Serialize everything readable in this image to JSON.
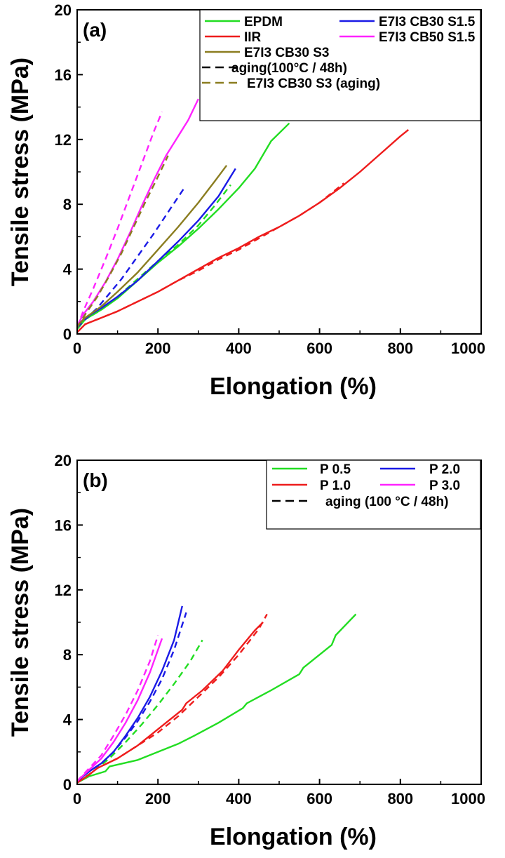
{
  "chart_data": [
    {
      "type": "line",
      "panel_label": "(a)",
      "xlabel": "Elongation (%)",
      "ylabel": "Tensile stress (MPa)",
      "xlim": [
        0,
        1000
      ],
      "ylim": [
        0,
        20
      ],
      "xticks": [
        "0",
        "200",
        "400",
        "600",
        "800",
        "1000"
      ],
      "yticks": [
        "0",
        "4",
        "8",
        "12",
        "16",
        "20"
      ],
      "legend_position": "top-right",
      "legend": [
        {
          "label": "EPDM",
          "color": "#22dd22",
          "dash": false
        },
        {
          "label": "E7I3 CB30 S1.5",
          "color": "#1a1ae6",
          "dash": false
        },
        {
          "label": "IIR",
          "color": "#ee1c1c",
          "dash": false
        },
        {
          "label": "E7I3 CB50 S1.5",
          "color": "#ff22ff",
          "dash": false
        },
        {
          "label": "E7I3 CB30 S3",
          "color": "#8b7d20",
          "dash": false
        },
        {
          "label": "aging(100°C / 48h)",
          "color": "#000000",
          "dash": true
        },
        {
          "label": "E7I3 CB30 S3 (aging)",
          "color": "#8b7d20",
          "dash": true
        }
      ],
      "series": [
        {
          "color": "#22dd22",
          "dash": false,
          "points": [
            [
              0,
              0.3
            ],
            [
              20,
              0.9
            ],
            [
              60,
              1.5
            ],
            [
              100,
              2.2
            ],
            [
              150,
              3.3
            ],
            [
              200,
              4.4
            ],
            [
              250,
              5.4
            ],
            [
              300,
              6.5
            ],
            [
              350,
              7.7
            ],
            [
              400,
              9.0
            ],
            [
              440,
              10.2
            ],
            [
              480,
              11.9
            ],
            [
              525,
              13.0
            ]
          ]
        },
        {
          "color": "#22dd22",
          "dash": true,
          "points": [
            [
              0,
              0.3
            ],
            [
              20,
              0.9
            ],
            [
              60,
              1.5
            ],
            [
              100,
              2.3
            ],
            [
              150,
              3.4
            ],
            [
              200,
              4.5
            ],
            [
              250,
              5.5
            ],
            [
              300,
              6.7
            ],
            [
              340,
              7.9
            ],
            [
              380,
              9.2
            ]
          ]
        },
        {
          "color": "#ee1c1c",
          "dash": false,
          "points": [
            [
              0,
              0.1
            ],
            [
              20,
              0.6
            ],
            [
              50,
              0.9
            ],
            [
              100,
              1.4
            ],
            [
              150,
              2.0
            ],
            [
              200,
              2.6
            ],
            [
              250,
              3.3
            ],
            [
              300,
              4.0
            ],
            [
              350,
              4.7
            ],
            [
              400,
              5.3
            ],
            [
              450,
              6.0
            ],
            [
              500,
              6.6
            ],
            [
              550,
              7.3
            ],
            [
              600,
              8.1
            ],
            [
              650,
              9.0
            ],
            [
              700,
              10.0
            ],
            [
              750,
              11.1
            ],
            [
              800,
              12.2
            ],
            [
              820,
              12.6
            ]
          ]
        },
        {
          "color": "#ee1c1c",
          "dash": true,
          "points": [
            [
              0,
              0.1
            ],
            [
              20,
              0.6
            ],
            [
              50,
              0.9
            ],
            [
              100,
              1.4
            ],
            [
              150,
              2.0
            ],
            [
              200,
              2.6
            ],
            [
              250,
              3.3
            ],
            [
              300,
              3.9
            ],
            [
              350,
              4.6
            ],
            [
              400,
              5.2
            ],
            [
              450,
              5.9
            ],
            [
              500,
              6.6
            ],
            [
              550,
              7.3
            ],
            [
              600,
              8.1
            ],
            [
              660,
              9.3
            ]
          ]
        },
        {
          "color": "#1a1ae6",
          "dash": false,
          "points": [
            [
              0,
              0.5
            ],
            [
              20,
              1.0
            ],
            [
              60,
              1.6
            ],
            [
              100,
              2.3
            ],
            [
              150,
              3.3
            ],
            [
              200,
              4.5
            ],
            [
              250,
              5.7
            ],
            [
              300,
              7.0
            ],
            [
              350,
              8.5
            ],
            [
              392,
              10.2
            ]
          ]
        },
        {
          "color": "#1a1ae6",
          "dash": true,
          "points": [
            [
              0,
              0.4
            ],
            [
              20,
              0.9
            ],
            [
              50,
              1.6
            ],
            [
              80,
              2.5
            ],
            [
              110,
              3.4
            ],
            [
              150,
              4.8
            ],
            [
              190,
              6.2
            ],
            [
              230,
              7.7
            ],
            [
              265,
              9.0
            ]
          ]
        },
        {
          "color": "#ff22ff",
          "dash": false,
          "points": [
            [
              0,
              0.5
            ],
            [
              15,
              1.2
            ],
            [
              40,
              2.0
            ],
            [
              70,
              3.2
            ],
            [
              100,
              4.6
            ],
            [
              130,
              6.2
            ],
            [
              160,
              7.9
            ],
            [
              190,
              9.5
            ],
            [
              220,
              11.0
            ],
            [
              250,
              12.2
            ],
            [
              275,
              13.2
            ],
            [
              300,
              14.5
            ]
          ]
        },
        {
          "color": "#ff22ff",
          "dash": true,
          "points": [
            [
              0,
              0.4
            ],
            [
              15,
              1.4
            ],
            [
              40,
              2.8
            ],
            [
              70,
              4.6
            ],
            [
              100,
              6.5
            ],
            [
              130,
              8.5
            ],
            [
              160,
              10.5
            ],
            [
              190,
              12.5
            ],
            [
              210,
              13.7
            ]
          ]
        },
        {
          "color": "#8b7d20",
          "dash": false,
          "points": [
            [
              0,
              0.5
            ],
            [
              20,
              1.0
            ],
            [
              60,
              1.7
            ],
            [
              100,
              2.6
            ],
            [
              150,
              3.8
            ],
            [
              200,
              5.2
            ],
            [
              250,
              6.6
            ],
            [
              300,
              8.1
            ],
            [
              340,
              9.4
            ],
            [
              370,
              10.4
            ]
          ]
        },
        {
          "color": "#8b7d20",
          "dash": true,
          "points": [
            [
              0,
              0.4
            ],
            [
              20,
              1.2
            ],
            [
              50,
              2.3
            ],
            [
              80,
              3.6
            ],
            [
              110,
              5.0
            ],
            [
              140,
              6.6
            ],
            [
              170,
              8.2
            ],
            [
              200,
              9.7
            ],
            [
              225,
              11.0
            ]
          ]
        }
      ]
    },
    {
      "type": "line",
      "panel_label": "(b)",
      "xlabel": "Elongation (%)",
      "ylabel": "Tensile stress (MPa)",
      "xlim": [
        0,
        1000
      ],
      "ylim": [
        0,
        20
      ],
      "xticks": [
        "0",
        "200",
        "400",
        "600",
        "800",
        "1000"
      ],
      "yticks": [
        "0",
        "4",
        "8",
        "12",
        "16",
        "20"
      ],
      "legend_position": "top-right",
      "legend": [
        {
          "label": "P 0.5",
          "color": "#22dd22",
          "dash": false
        },
        {
          "label": "P 2.0",
          "color": "#1a1ae6",
          "dash": false
        },
        {
          "label": "P 1.0",
          "color": "#ee1c1c",
          "dash": false
        },
        {
          "label": "P 3.0",
          "color": "#ff22ff",
          "dash": false
        },
        {
          "label": "aging (100 °C / 48h)",
          "color": "#000000",
          "dash": true
        }
      ],
      "series": [
        {
          "color": "#22dd22",
          "dash": false,
          "points": [
            [
              0,
              0.1
            ],
            [
              30,
              0.5
            ],
            [
              70,
              0.8
            ],
            [
              80,
              1.1
            ],
            [
              150,
              1.5
            ],
            [
              200,
              2.0
            ],
            [
              250,
              2.5
            ],
            [
              290,
              3.0
            ],
            [
              350,
              3.8
            ],
            [
              410,
              4.7
            ],
            [
              420,
              5.0
            ],
            [
              480,
              5.8
            ],
            [
              550,
              6.8
            ],
            [
              560,
              7.2
            ],
            [
              630,
              8.6
            ],
            [
              640,
              9.2
            ],
            [
              690,
              10.5
            ]
          ]
        },
        {
          "color": "#22dd22",
          "dash": true,
          "points": [
            [
              0,
              0.1
            ],
            [
              40,
              0.8
            ],
            [
              80,
              1.6
            ],
            [
              120,
              2.6
            ],
            [
              160,
              3.7
            ],
            [
              200,
              4.9
            ],
            [
              240,
              6.2
            ],
            [
              280,
              7.6
            ],
            [
              310,
              8.9
            ]
          ]
        },
        {
          "color": "#ee1c1c",
          "dash": false,
          "points": [
            [
              0,
              0.1
            ],
            [
              30,
              0.6
            ],
            [
              50,
              1.0
            ],
            [
              100,
              1.6
            ],
            [
              150,
              2.4
            ],
            [
              180,
              3.0
            ],
            [
              220,
              3.8
            ],
            [
              260,
              4.6
            ],
            [
              270,
              5.0
            ],
            [
              310,
              5.8
            ],
            [
              360,
              7.0
            ],
            [
              400,
              8.3
            ],
            [
              440,
              9.5
            ],
            [
              460,
              10.0
            ]
          ]
        },
        {
          "color": "#ee1c1c",
          "dash": true,
          "points": [
            [
              0,
              0.1
            ],
            [
              30,
              0.6
            ],
            [
              50,
              1.0
            ],
            [
              100,
              1.6
            ],
            [
              150,
              2.4
            ],
            [
              200,
              3.2
            ],
            [
              250,
              4.2
            ],
            [
              300,
              5.4
            ],
            [
              350,
              6.6
            ],
            [
              400,
              8.0
            ],
            [
              450,
              9.6
            ],
            [
              470,
              10.5
            ]
          ]
        },
        {
          "color": "#1a1ae6",
          "dash": false,
          "points": [
            [
              0,
              0.2
            ],
            [
              30,
              0.8
            ],
            [
              60,
              1.3
            ],
            [
              90,
              2.0
            ],
            [
              120,
              3.0
            ],
            [
              150,
              4.1
            ],
            [
              180,
              5.4
            ],
            [
              210,
              7.0
            ],
            [
              240,
              8.9
            ],
            [
              260,
              11.0
            ]
          ]
        },
        {
          "color": "#1a1ae6",
          "dash": true,
          "points": [
            [
              0,
              0.2
            ],
            [
              30,
              0.8
            ],
            [
              60,
              1.3
            ],
            [
              90,
              2.0
            ],
            [
              120,
              2.9
            ],
            [
              150,
              3.9
            ],
            [
              180,
              5.1
            ],
            [
              210,
              6.5
            ],
            [
              240,
              8.3
            ],
            [
              270,
              10.6
            ]
          ]
        },
        {
          "color": "#ff22ff",
          "dash": false,
          "points": [
            [
              0,
              0.2
            ],
            [
              30,
              0.9
            ],
            [
              60,
              1.6
            ],
            [
              90,
              2.6
            ],
            [
              120,
              3.8
            ],
            [
              150,
              5.2
            ],
            [
              180,
              6.9
            ],
            [
              210,
              9.0
            ]
          ]
        },
        {
          "color": "#ff22ff",
          "dash": true,
          "points": [
            [
              0,
              0.2
            ],
            [
              30,
              1.0
            ],
            [
              60,
              1.8
            ],
            [
              90,
              3.0
            ],
            [
              120,
              4.3
            ],
            [
              150,
              5.8
            ],
            [
              180,
              7.6
            ],
            [
              200,
              9.2
            ]
          ]
        }
      ]
    }
  ]
}
